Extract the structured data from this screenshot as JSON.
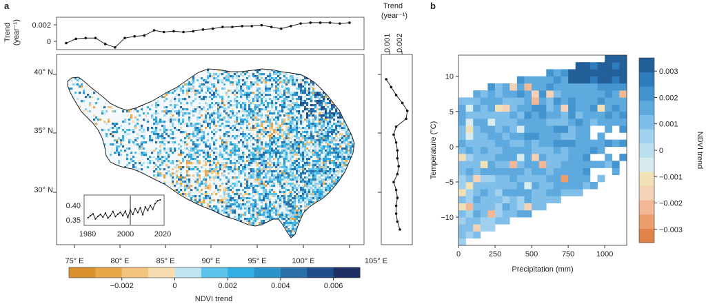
{
  "panel_a_label": "a",
  "panel_b_label": "b",
  "chart_data": [
    {
      "type": "line",
      "name": "NDVI trend time series (top)",
      "ylabel_line1": "Trend",
      "ylabel_line2": "(year⁻¹)",
      "yticks": [
        "0.002",
        "0"
      ],
      "ylim": [
        -0.0006,
        0.0028
      ],
      "x_start": 1982,
      "x_end": 2020,
      "values": [
        0.0,
        0.0005,
        0.0006,
        0.0006,
        -0.0001,
        -0.0005,
        0.0006,
        0.0008,
        0.0009,
        0.0015,
        0.0013,
        0.0014,
        0.0013,
        0.0014,
        0.0016,
        0.0017,
        0.0019,
        0.0019,
        0.002,
        0.002,
        0.0021,
        0.0019,
        0.0017,
        0.002,
        0.0023,
        0.0024,
        0.0024,
        0.0024,
        0.0023,
        0.0024
      ]
    },
    {
      "type": "line",
      "name": "NDVI trend by latitude (right)",
      "title_line1": "Trend",
      "title_line2": "(year⁻¹)",
      "xticks": [
        "0.001",
        "0.002"
      ],
      "xlim": [
        0.0,
        0.0025
      ],
      "lat_range": [
        27,
        40
      ],
      "values": [
        0.0004,
        0.0008,
        0.0012,
        0.0017,
        0.0021,
        0.002,
        0.0012,
        0.001,
        0.0012,
        0.0013,
        0.0013,
        0.0014,
        0.0013,
        0.001,
        0.0012,
        0.0013,
        0.0012,
        0.0012,
        0.0013,
        0.0015
      ]
    },
    {
      "type": "map",
      "name": "Tibetan Plateau NDVI trend map",
      "xticks": [
        "75° E",
        "80° E",
        "85° E",
        "90° E",
        "95° E",
        "100° E",
        "105° E"
      ],
      "yticks": [
        "40° N",
        "35° N",
        "30° N"
      ],
      "lon_range": [
        72.5,
        106
      ],
      "lat_range": [
        26.5,
        41
      ],
      "colorbar": {
        "label": "NDVI trend",
        "ticks": [
          "−0.002",
          "0",
          "0.002",
          "0.004",
          "0.006"
        ],
        "tick_values": [
          -0.002,
          0,
          0.002,
          0.004,
          0.006
        ],
        "range": [
          -0.004,
          0.007
        ],
        "colors": [
          "#d9922e",
          "#e9a748",
          "#f2c27f",
          "#f6dcaf",
          "#bfe4f2",
          "#5cc3ea",
          "#33aee3",
          "#2b93c8",
          "#2a6fa8",
          "#1f4c8a",
          "#1d2f63"
        ]
      },
      "inset": {
        "type": "line",
        "yticks": [
          "0.40",
          "0.35"
        ],
        "xticks": [
          "1980",
          "2000",
          "2020"
        ],
        "xlim": [
          1980,
          2021
        ],
        "ylim": [
          0.32,
          0.42
        ],
        "values": [
          0.345,
          0.352,
          0.358,
          0.341,
          0.35,
          0.356,
          0.347,
          0.361,
          0.344,
          0.352,
          0.366,
          0.349,
          0.357,
          0.363,
          0.352,
          0.367,
          0.346,
          0.371,
          0.356,
          0.375,
          0.362,
          0.378,
          0.355,
          0.381,
          0.369,
          0.386,
          0.373,
          0.392,
          0.401,
          0.404
        ]
      }
    },
    {
      "type": "heatmap",
      "name": "NDVI trend vs temperature and precipitation",
      "xlabel": "Precipitation (mm)",
      "ylabel": "Temperature (°C)",
      "xticks": [
        "0",
        "250",
        "500",
        "750",
        "1000"
      ],
      "xtick_values": [
        0,
        250,
        500,
        750,
        1000
      ],
      "xlim": [
        0,
        1150
      ],
      "yticks": [
        "10",
        "5",
        "0",
        "−5",
        "−10"
      ],
      "ytick_values": [
        10,
        5,
        0,
        -5,
        -10
      ],
      "ylim": [
        -14,
        13
      ],
      "colorbar": {
        "label": "NDVI trend",
        "ticks": [
          "0.003",
          "0.002",
          "0.001",
          "0",
          "−0.001",
          "−0.002",
          "−0.003"
        ],
        "tick_values": [
          0.003,
          0.002,
          0.001,
          0,
          -0.001,
          -0.002,
          -0.003
        ],
        "range": [
          -0.0035,
          0.0035
        ],
        "colors": [
          "#e2844a",
          "#ec9e6f",
          "#f2b795",
          "#f5d1b5",
          "#f0e1b6",
          "#d8ecef",
          "#bcdff0",
          "#9fd0ee",
          "#7ebee9",
          "#5eaade",
          "#4394cf",
          "#2f7cbc",
          "#235f99"
        ]
      }
    }
  ]
}
